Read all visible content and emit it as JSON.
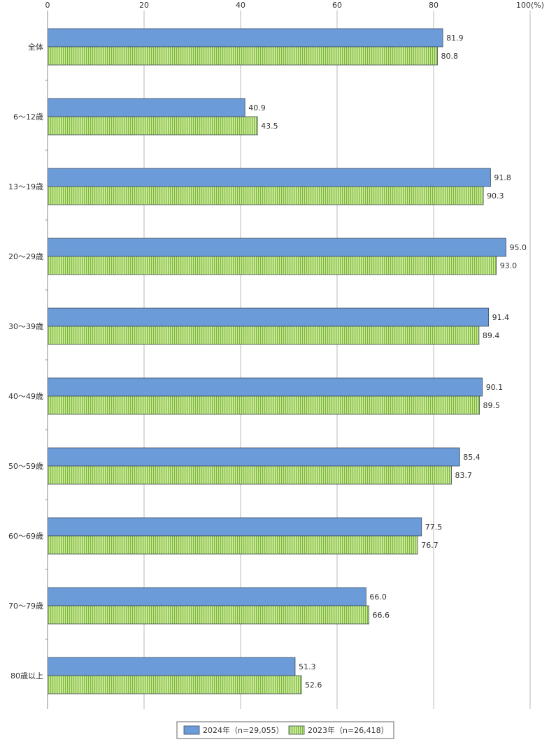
{
  "chart_data": {
    "type": "bar",
    "orientation": "horizontal",
    "categories": [
      "全体",
      "6～12歳",
      "13～19歳",
      "20～29歳",
      "30～39歳",
      "40～49歳",
      "50～59歳",
      "60～69歳",
      "70～79歳",
      "80歳以上"
    ],
    "series": [
      {
        "name": "2024年（n=29,055）",
        "color": "#6b9bd8",
        "pattern": "solid",
        "values": [
          81.9,
          40.9,
          91.8,
          95.0,
          91.4,
          90.1,
          85.4,
          77.5,
          66.0,
          51.3
        ],
        "value_labels": [
          "81.9",
          "40.9",
          "91.8",
          "95.0",
          "91.4",
          "90.1",
          "85.4",
          "77.5",
          "66.0",
          "51.3"
        ]
      },
      {
        "name": "2023年（n=26,418）",
        "color": "#a8d66b",
        "pattern": "vertical-stripes",
        "values": [
          80.8,
          43.5,
          90.3,
          93.0,
          89.4,
          89.5,
          83.7,
          76.7,
          66.6,
          52.6
        ],
        "value_labels": [
          "80.8",
          "43.5",
          "90.3",
          "93.0",
          "89.4",
          "89.5",
          "83.7",
          "76.7",
          "66.6",
          "52.6"
        ]
      }
    ],
    "xlim": [
      0,
      100
    ],
    "x_ticks": [
      0,
      20,
      40,
      60,
      80,
      100
    ],
    "x_tick_labels": [
      "0",
      "20",
      "40",
      "60",
      "80",
      "100(%)"
    ],
    "xaxis_position": "top",
    "grid": true,
    "legend_position": "bottom-right"
  }
}
